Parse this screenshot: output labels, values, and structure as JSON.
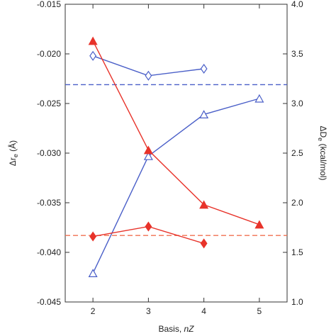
{
  "chart_data": {
    "type": "line",
    "xlabel_prefix": "Basis, ",
    "xlabel_italic": "nZ",
    "ylabel_left": "Δr",
    "ylabel_left_sub": "e",
    "ylabel_left_unit": " (Å)",
    "ylabel_right": "ΔD",
    "ylabel_right_sub": "e",
    "ylabel_right_unit": " (kcal/mol)",
    "xlim": [
      1.5,
      5.5
    ],
    "ylim_left": [
      -0.045,
      -0.015
    ],
    "ylim_right": [
      1.0,
      4.0
    ],
    "x_ticks": [
      2,
      3,
      4,
      5
    ],
    "x_tick_labels": [
      "2",
      "3",
      "4",
      "5"
    ],
    "y_left_ticks": [
      -0.045,
      -0.04,
      -0.035,
      -0.03,
      -0.025,
      -0.02,
      -0.015
    ],
    "y_left_tick_labels": [
      "-0.045",
      "-0.040",
      "-0.035",
      "-0.030",
      "-0.025",
      "-0.020",
      "-0.015"
    ],
    "y_right_ticks": [
      1.0,
      1.5,
      2.0,
      2.5,
      3.0,
      3.5,
      4.0
    ],
    "y_right_tick_labels": [
      "1.0",
      "1.5",
      "2.0",
      "2.5",
      "3.0",
      "3.5",
      "4.0"
    ],
    "grid": false,
    "series": [
      {
        "axis": "left",
        "color": "#4a5fc8",
        "marker": "diamond-open",
        "x": [
          2,
          3,
          4
        ],
        "y": [
          -0.0202,
          -0.0222,
          -0.0215
        ]
      },
      {
        "axis": "left",
        "color": "#4a5fc8",
        "marker": "triangle-open",
        "x": [
          2,
          3,
          4,
          5
        ],
        "y": [
          -0.0421,
          -0.0303,
          -0.0261,
          -0.0245
        ]
      },
      {
        "axis": "right",
        "color": "#e8332a",
        "marker": "triangle-filled",
        "x": [
          2,
          3,
          4,
          5
        ],
        "y": [
          3.63,
          2.53,
          1.98,
          1.78
        ]
      },
      {
        "axis": "right",
        "color": "#e8332a",
        "marker": "diamond-filled",
        "x": [
          2,
          3,
          4
        ],
        "y": [
          1.66,
          1.76,
          1.59
        ]
      }
    ],
    "reference_lines": [
      {
        "axis": "left",
        "y": -0.0231,
        "color": "#4a5fc8",
        "style": "dashed"
      },
      {
        "axis": "right",
        "y": 1.67,
        "color": "#f07050",
        "style": "dashed"
      }
    ]
  }
}
